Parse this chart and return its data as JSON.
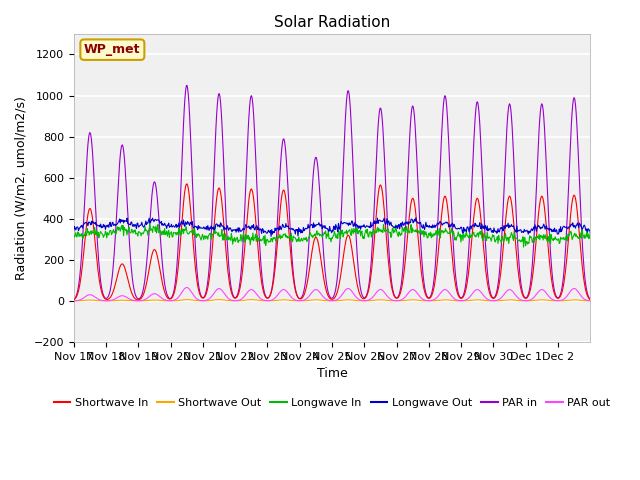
{
  "title": "Solar Radiation",
  "xlabel": "Time",
  "ylabel": "Radiation (W/m2, umol/m2/s)",
  "ylim": [
    -200,
    1300
  ],
  "yticks": [
    -200,
    0,
    200,
    400,
    600,
    800,
    1000,
    1200
  ],
  "x_tick_labels": [
    "Nov 17",
    "Nov 18",
    "Nov 19",
    "Nov 20",
    "Nov 21",
    "Nov 22",
    "Nov 23",
    "Nov 24",
    "Nov 25",
    "Nov 26",
    "Nov 27",
    "Nov 28",
    "Nov 29",
    "Nov 30",
    "Dec 1",
    "Dec 2"
  ],
  "annotation_text": "WP_met",
  "annotation_color": "#8B0000",
  "annotation_bg": "#FFFACD",
  "annotation_border": "#C8A000",
  "legend_entries": [
    {
      "label": "Shortwave In",
      "color": "#FF0000"
    },
    {
      "label": "Shortwave Out",
      "color": "#FFA500"
    },
    {
      "label": "Longwave In",
      "color": "#00BB00"
    },
    {
      "label": "Longwave Out",
      "color": "#0000CC"
    },
    {
      "label": "PAR in",
      "color": "#9900CC"
    },
    {
      "label": "PAR out",
      "color": "#FF44FF"
    }
  ],
  "plot_bg": "#F0F0F0",
  "grid_color": "#FFFFFF",
  "title_fontsize": 11,
  "axis_fontsize": 9,
  "tick_fontsize": 8
}
